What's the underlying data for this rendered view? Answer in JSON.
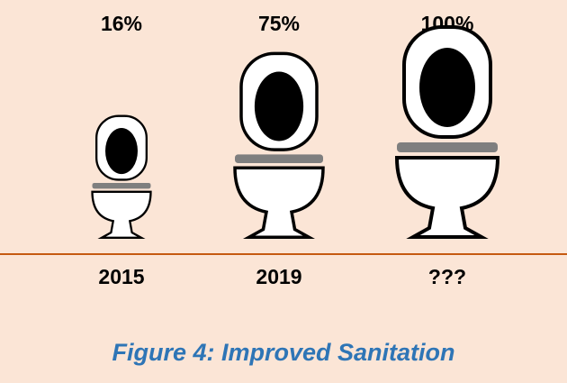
{
  "chart_data": {
    "type": "pictogram",
    "title": "Figure 4: Improved Sanitation",
    "categories": [
      "2015",
      "2019",
      "???"
    ],
    "values": [
      16,
      75,
      100
    ],
    "value_labels": [
      "16%",
      "75%",
      "100%"
    ]
  }
}
